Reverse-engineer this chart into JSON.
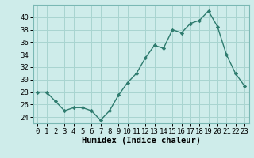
{
  "x": [
    0,
    1,
    2,
    3,
    4,
    5,
    6,
    7,
    8,
    9,
    10,
    11,
    12,
    13,
    14,
    15,
    16,
    17,
    18,
    19,
    20,
    21,
    22,
    23
  ],
  "y": [
    28,
    28,
    26.5,
    25,
    25.5,
    25.5,
    25,
    23.5,
    25,
    27.5,
    29.5,
    31,
    33.5,
    35.5,
    35,
    38,
    37.5,
    39,
    39.5,
    41,
    38.5,
    34,
    31,
    29
  ],
  "line_color": "#2e7b6e",
  "marker": "D",
  "marker_size": 2.2,
  "bg_color": "#ceecea",
  "grid_color": "#a8d4d0",
  "xlabel": "Humidex (Indice chaleur)",
  "xlim": [
    -0.5,
    23.5
  ],
  "ylim": [
    23,
    42
  ],
  "yticks": [
    24,
    26,
    28,
    30,
    32,
    34,
    36,
    38,
    40
  ],
  "xticks": [
    0,
    1,
    2,
    3,
    4,
    5,
    6,
    7,
    8,
    9,
    10,
    11,
    12,
    13,
    14,
    15,
    16,
    17,
    18,
    19,
    20,
    21,
    22,
    23
  ],
  "xtick_labels": [
    "0",
    "1",
    "2",
    "3",
    "4",
    "5",
    "6",
    "7",
    "8",
    "9",
    "10",
    "11",
    "12",
    "13",
    "14",
    "15",
    "16",
    "17",
    "18",
    "19",
    "20",
    "21",
    "22",
    "23"
  ],
  "line_width": 1.0,
  "xlabel_fontsize": 7.5,
  "tick_fontsize": 6.5
}
